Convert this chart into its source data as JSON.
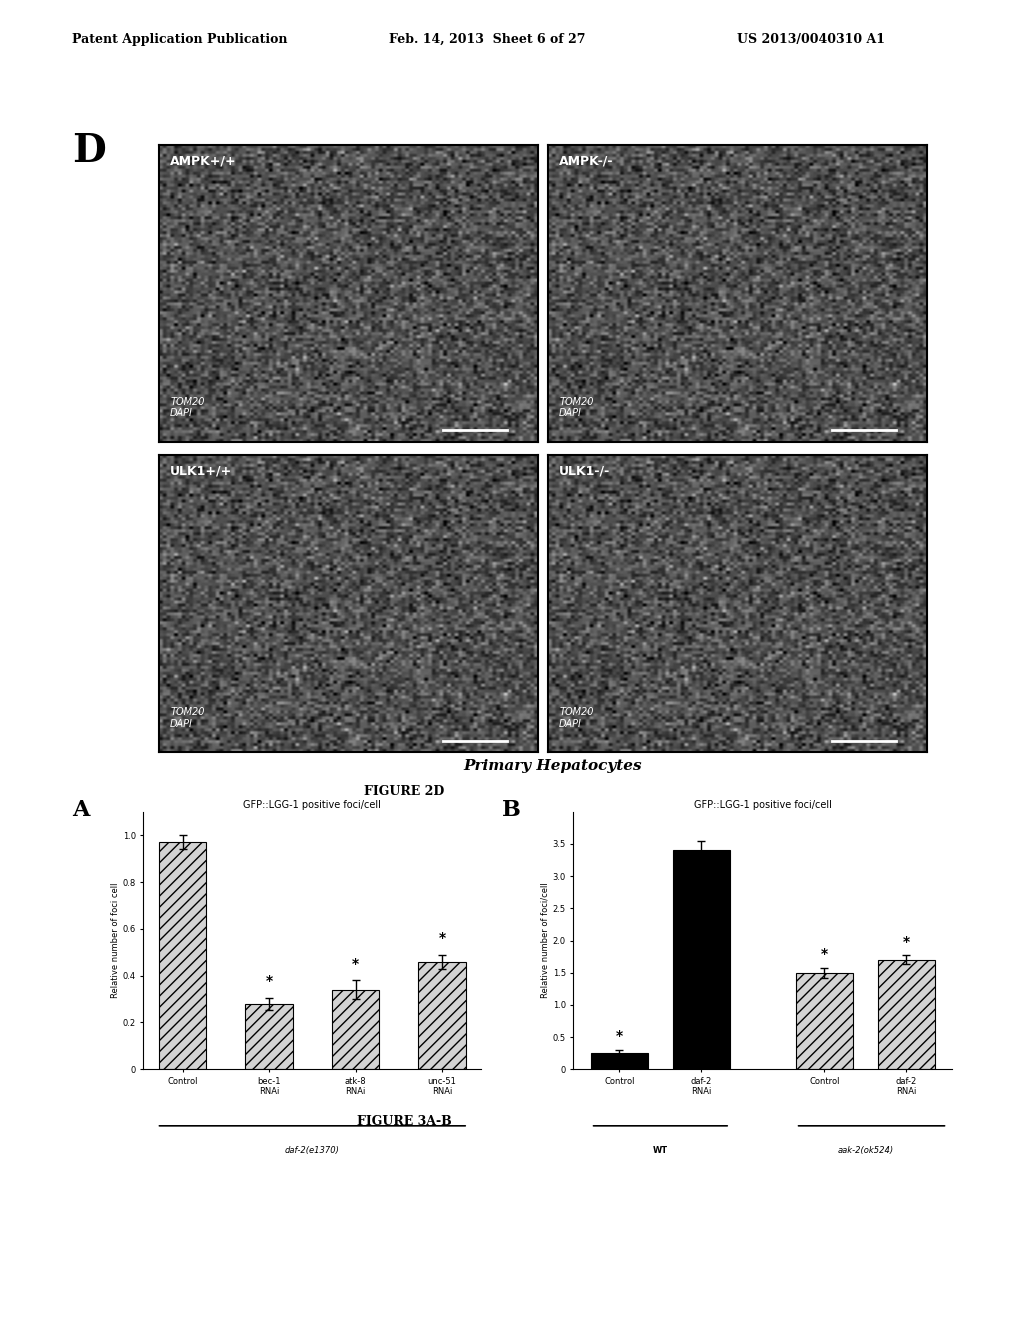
{
  "header_left": "Patent Application Publication",
  "header_center": "Feb. 14, 2013  Sheet 6 of 27",
  "header_right": "US 2013/0040310 A1",
  "figure_label_D": "D",
  "panel_labels": [
    "AMPK+/+",
    "AMPK-/-",
    "ULK1+/+",
    "ULK1-/-"
  ],
  "microscopy_labels": [
    "TOM20\nDAPI",
    "TOM20\nDAPI",
    "TOM20\nDAPI",
    "TOM20\nDAPI"
  ],
  "caption_center": "Primary Hepatocytes",
  "figure2d_label": "FIGURE 2D",
  "figure3ab_label": "FIGURE 3A-B",
  "panel_A_label": "A",
  "panel_B_label": "B",
  "chartA_title": "GFP::LGG-1 positive foci/cell",
  "chartA_ylabel": "Relative number of foci cell",
  "chartA_categories": [
    "Control",
    "bec-1\nRNAi",
    "atk-8\nRNAi",
    "unc-51\nRNAi"
  ],
  "chartA_values": [
    0.97,
    0.28,
    0.34,
    0.46
  ],
  "chartA_errors": [
    0.03,
    0.025,
    0.04,
    0.03
  ],
  "chartA_ylim": [
    0,
    1.1
  ],
  "chartA_yticks": [
    0,
    0.2,
    0.4,
    0.6,
    0.8,
    1.0
  ],
  "chartA_xlabel_group": "daf-2(e1370)",
  "chartA_stars": [
    false,
    true,
    true,
    true
  ],
  "chartB_title": "GFP::LGG-1 positive foci/cell",
  "chartB_ylabel": "Relative number of foci/cell",
  "chartB_categories": [
    "Control",
    "daf-2\nRNAi",
    "Control",
    "daf-2\nRNAi"
  ],
  "chartB_values": [
    0.25,
    3.4,
    1.5,
    1.7
  ],
  "chartB_errors": [
    0.05,
    0.15,
    0.08,
    0.07
  ],
  "chartB_ylim": [
    0,
    4.0
  ],
  "chartB_yticks": [
    0,
    0.5,
    1.0,
    1.5,
    2.0,
    2.5,
    3.0,
    3.5
  ],
  "chartB_groups": [
    "WT",
    "aak-2(ok524)"
  ],
  "chartB_stars": [
    true,
    false,
    true,
    true
  ],
  "chartB_bar_colors": [
    "black",
    "black",
    "gray",
    "gray"
  ],
  "bg_color": "#ffffff"
}
